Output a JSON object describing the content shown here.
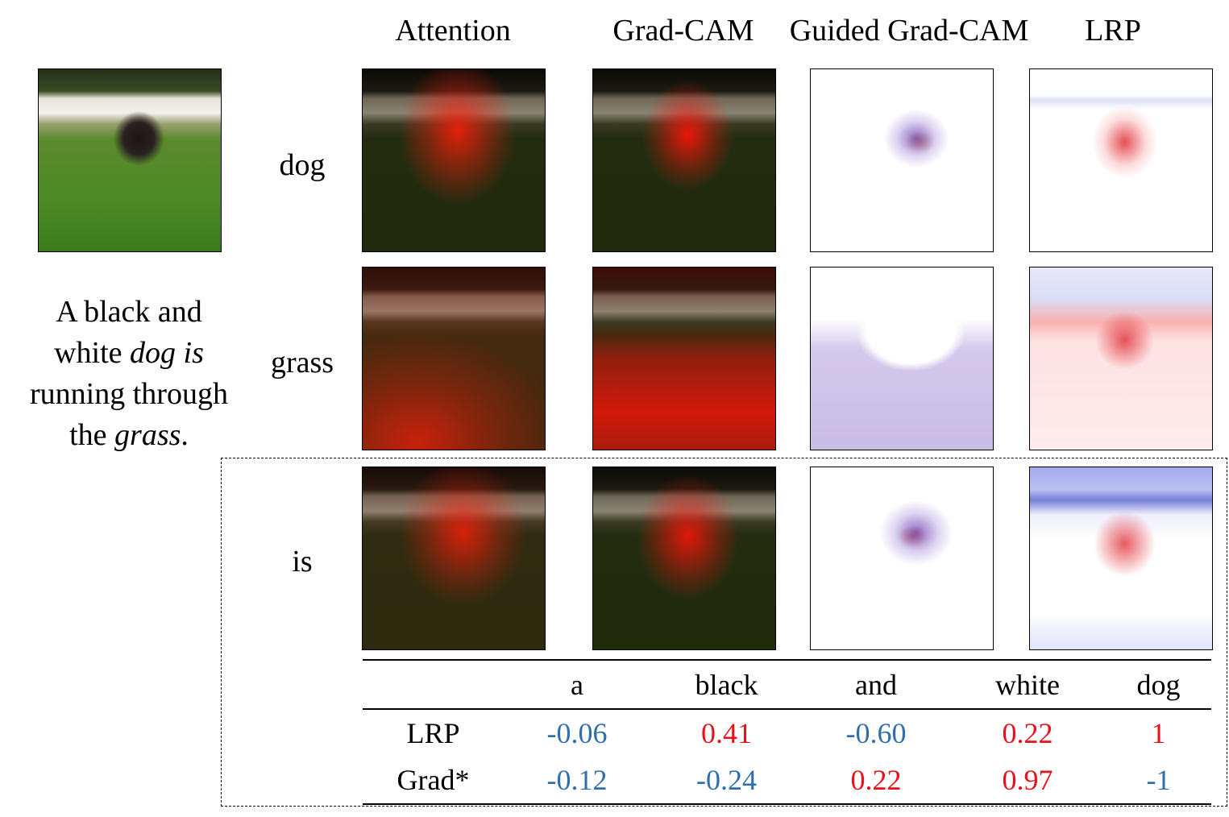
{
  "column_headers": [
    "Attention",
    "Grad-CAM",
    "Guided Grad-CAM",
    "LRP"
  ],
  "row_labels": [
    "dog",
    "grass",
    "is"
  ],
  "caption": [
    {
      "text": "A black and",
      "italic": false
    },
    {
      "text": "white ",
      "italic": false
    },
    {
      "text": "dog is",
      "italic": true
    },
    {
      "text": "running through",
      "italic": false
    },
    {
      "text": "the ",
      "italic": false
    },
    {
      "text": "grass",
      "italic": true
    },
    {
      "text": ".",
      "italic": false
    }
  ],
  "table": {
    "columns": [
      "a",
      "black",
      "and",
      "white",
      "dog"
    ],
    "rows": [
      {
        "label": "LRP",
        "values": [
          "-0.06",
          "0.41",
          "-0.60",
          "0.22",
          "1"
        ]
      },
      {
        "label": "Grad*",
        "values": [
          "-0.12",
          "-0.24",
          "0.22",
          "0.97",
          "-1"
        ]
      }
    ]
  },
  "colors": {
    "negative": "#2f6fad",
    "positive": "#e8121a",
    "heatmap": "#ff1a0a"
  }
}
